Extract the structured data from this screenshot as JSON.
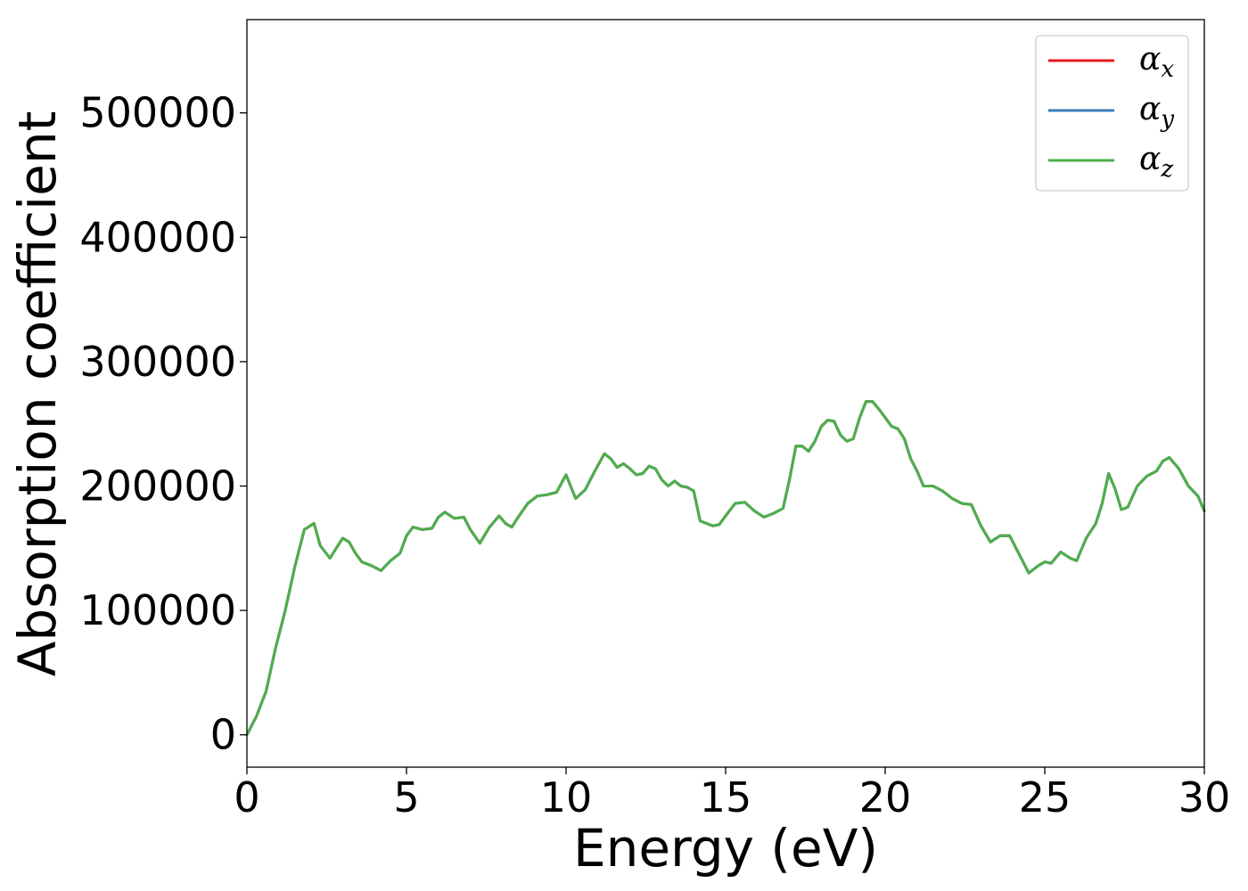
{
  "chart_data": {
    "type": "line",
    "xlabel": "Energy (eV)",
    "ylabel": "Absorption coefficient",
    "xlim": [
      0,
      30
    ],
    "ylim": [
      -26000,
      575000
    ],
    "x_ticks": [
      0,
      5,
      10,
      15,
      20,
      25,
      30
    ],
    "y_ticks": [
      0,
      100000,
      200000,
      300000,
      400000,
      500000
    ],
    "grid": false,
    "legend_position": "top-right",
    "legend": [
      {
        "symbol": "α",
        "subscript": "x",
        "color": "#e41a1c"
      },
      {
        "symbol": "α",
        "subscript": "y",
        "color": "#377eb8"
      },
      {
        "symbol": "α",
        "subscript": "z",
        "color": "#4daf4a"
      }
    ],
    "series": [
      {
        "color": "#e41a1c",
        "x": [
          0,
          0.3,
          0.6,
          0.9,
          1.2,
          1.5,
          1.8,
          2.1,
          2.3,
          2.6,
          2.8,
          3.0,
          3.2,
          3.4,
          3.6,
          3.9,
          4.2,
          4.5,
          4.8,
          5.0,
          5.2,
          5.5,
          5.8,
          6.0,
          6.2,
          6.5,
          6.8,
          7.0,
          7.3,
          7.6,
          7.9,
          8.1,
          8.3,
          8.5,
          8.8,
          9.1,
          9.4,
          9.7,
          10.0,
          10.3,
          10.6,
          10.9,
          11.2,
          11.4,
          11.6,
          11.8,
          12.0,
          12.2,
          12.4,
          12.6,
          12.8,
          13.0,
          13.2,
          13.4,
          13.6,
          13.8,
          14.0,
          14.2,
          14.4,
          14.6,
          14.8,
          15.0,
          15.3,
          15.6,
          15.9,
          16.2,
          16.5,
          16.8,
          17.0,
          17.2,
          17.4,
          17.6,
          17.8,
          18.0,
          18.2,
          18.4,
          18.6,
          18.8,
          19.0,
          19.2,
          19.4,
          19.6,
          19.8,
          20.0,
          20.2,
          20.4,
          20.6,
          20.8,
          21.0,
          21.2,
          21.5,
          21.8,
          22.1,
          22.4,
          22.7,
          23.0,
          23.3,
          23.6,
          23.9,
          24.2,
          24.5,
          24.8,
          25.0,
          25.2,
          25.5,
          25.8,
          26.0,
          26.3,
          26.6,
          26.8,
          27.0,
          27.2,
          27.4,
          27.6,
          27.9,
          28.2,
          28.5,
          28.7,
          28.9,
          29.2,
          29.5,
          29.8,
          30.0
        ],
        "y": [
          0,
          15000,
          35000,
          70000,
          100000,
          135000,
          165000,
          170000,
          152000,
          142000,
          150000,
          158000,
          155000,
          146000,
          139000,
          136000,
          132000,
          140000,
          146000,
          160000,
          167000,
          165000,
          166000,
          175000,
          179000,
          174000,
          175000,
          165000,
          154000,
          167000,
          176000,
          170000,
          167000,
          175000,
          186000,
          192000,
          193000,
          195000,
          209000,
          190000,
          197000,
          212000,
          226000,
          222000,
          215000,
          218000,
          214000,
          209000,
          210000,
          216000,
          214000,
          205000,
          200000,
          204000,
          200000,
          199000,
          196000,
          172000,
          170000,
          168000,
          169000,
          176000,
          186000,
          187000,
          180000,
          175000,
          178000,
          182000,
          205000,
          232000,
          232000,
          228000,
          236000,
          248000,
          253000,
          252000,
          241000,
          236000,
          238000,
          255000,
          268000,
          268000,
          262000,
          255000,
          248000,
          246000,
          238000,
          222000,
          212000,
          200000,
          200000,
          196000,
          190000,
          186000,
          185000,
          168000,
          155000,
          160000,
          160000,
          145000,
          130000,
          136000,
          139000,
          138000,
          147000,
          142000,
          140000,
          158000,
          170000,
          186000,
          210000,
          198000,
          181000,
          183000,
          200000,
          208000,
          212000,
          220000,
          223000,
          214000,
          200000,
          192000,
          180000
        ]
      },
      {
        "color": "#377eb8",
        "x": [
          0,
          0.3,
          0.6,
          0.9,
          1.2,
          1.5,
          1.8,
          2.1,
          2.3,
          2.6,
          2.8,
          3.0,
          3.2,
          3.4,
          3.6,
          3.9,
          4.2,
          4.5,
          4.8,
          5.0,
          5.2,
          5.5,
          5.8,
          6.0,
          6.2,
          6.5,
          6.8,
          7.0,
          7.3,
          7.6,
          7.9,
          8.1,
          8.3,
          8.5,
          8.8,
          9.1,
          9.4,
          9.7,
          10.0,
          10.3,
          10.6,
          10.9,
          11.2,
          11.4,
          11.6,
          11.8,
          12.0,
          12.2,
          12.4,
          12.6,
          12.8,
          13.0,
          13.2,
          13.4,
          13.6,
          13.8,
          14.0,
          14.2,
          14.4,
          14.6,
          14.8,
          15.0,
          15.3,
          15.6,
          15.9,
          16.2,
          16.5,
          16.8,
          17.0,
          17.2,
          17.4,
          17.6,
          17.8,
          18.0,
          18.2,
          18.4,
          18.6,
          18.8,
          19.0,
          19.2,
          19.4,
          19.6,
          19.8,
          20.0,
          20.2,
          20.4,
          20.6,
          20.8,
          21.0,
          21.2,
          21.5,
          21.8,
          22.1,
          22.4,
          22.7,
          23.0,
          23.3,
          23.6,
          23.9,
          24.2,
          24.5,
          24.8,
          25.0,
          25.2,
          25.5,
          25.8,
          26.0,
          26.3,
          26.6,
          26.8,
          27.0,
          27.2,
          27.4,
          27.6,
          27.9,
          28.2,
          28.5,
          28.7,
          28.9,
          29.2,
          29.5,
          29.8,
          30.0
        ],
        "y": [
          0,
          15000,
          35000,
          70000,
          100000,
          135000,
          165000,
          170000,
          152000,
          142000,
          150000,
          158000,
          155000,
          146000,
          139000,
          136000,
          132000,
          140000,
          146000,
          160000,
          167000,
          165000,
          166000,
          175000,
          179000,
          174000,
          175000,
          165000,
          154000,
          167000,
          176000,
          170000,
          167000,
          175000,
          186000,
          192000,
          193000,
          195000,
          209000,
          190000,
          197000,
          212000,
          226000,
          222000,
          215000,
          218000,
          214000,
          209000,
          210000,
          216000,
          214000,
          205000,
          200000,
          204000,
          200000,
          199000,
          196000,
          172000,
          170000,
          168000,
          169000,
          176000,
          186000,
          187000,
          180000,
          175000,
          178000,
          182000,
          205000,
          232000,
          232000,
          228000,
          236000,
          248000,
          253000,
          252000,
          241000,
          236000,
          238000,
          255000,
          268000,
          268000,
          262000,
          255000,
          248000,
          246000,
          238000,
          222000,
          212000,
          200000,
          200000,
          196000,
          190000,
          186000,
          185000,
          168000,
          155000,
          160000,
          160000,
          145000,
          130000,
          136000,
          139000,
          138000,
          147000,
          142000,
          140000,
          158000,
          170000,
          186000,
          210000,
          198000,
          181000,
          183000,
          200000,
          208000,
          212000,
          220000,
          223000,
          214000,
          200000,
          192000,
          180000
        ]
      },
      {
        "color": "#4daf4a",
        "x": [
          0,
          0.3,
          0.6,
          0.9,
          1.2,
          1.5,
          1.8,
          2.1,
          2.3,
          2.6,
          2.8,
          3.0,
          3.2,
          3.4,
          3.6,
          3.9,
          4.2,
          4.5,
          4.8,
          5.0,
          5.2,
          5.5,
          5.8,
          6.0,
          6.2,
          6.5,
          6.8,
          7.0,
          7.3,
          7.6,
          7.9,
          8.1,
          8.3,
          8.5,
          8.8,
          9.1,
          9.4,
          9.7,
          10.0,
          10.3,
          10.6,
          10.9,
          11.2,
          11.4,
          11.6,
          11.8,
          12.0,
          12.2,
          12.4,
          12.6,
          12.8,
          13.0,
          13.2,
          13.4,
          13.6,
          13.8,
          14.0,
          14.2,
          14.4,
          14.6,
          14.8,
          15.0,
          15.3,
          15.6,
          15.9,
          16.2,
          16.5,
          16.8,
          17.0,
          17.2,
          17.4,
          17.6,
          17.8,
          18.0,
          18.2,
          18.4,
          18.6,
          18.8,
          19.0,
          19.2,
          19.4,
          19.6,
          19.8,
          20.0,
          20.2,
          20.4,
          20.6,
          20.8,
          21.0,
          21.2,
          21.5,
          21.8,
          22.1,
          22.4,
          22.7,
          23.0,
          23.3,
          23.6,
          23.9,
          24.2,
          24.5,
          24.8,
          25.0,
          25.2,
          25.5,
          25.8,
          26.0,
          26.3,
          26.6,
          26.8,
          27.0,
          27.2,
          27.4,
          27.6,
          27.9,
          28.2,
          28.5,
          28.7,
          28.9,
          29.2,
          29.5,
          29.8,
          30.0
        ],
        "y": [
          0,
          15000,
          35000,
          70000,
          100000,
          135000,
          165000,
          170000,
          152000,
          142000,
          150000,
          158000,
          155000,
          146000,
          139000,
          136000,
          132000,
          140000,
          146000,
          160000,
          167000,
          165000,
          166000,
          175000,
          179000,
          174000,
          175000,
          165000,
          154000,
          167000,
          176000,
          170000,
          167000,
          175000,
          186000,
          192000,
          193000,
          195000,
          209000,
          190000,
          197000,
          212000,
          226000,
          222000,
          215000,
          218000,
          214000,
          209000,
          210000,
          216000,
          214000,
          205000,
          200000,
          204000,
          200000,
          199000,
          196000,
          172000,
          170000,
          168000,
          169000,
          176000,
          186000,
          187000,
          180000,
          175000,
          178000,
          182000,
          205000,
          232000,
          232000,
          228000,
          236000,
          248000,
          253000,
          252000,
          241000,
          236000,
          238000,
          255000,
          268000,
          268000,
          262000,
          255000,
          248000,
          246000,
          238000,
          222000,
          212000,
          200000,
          200000,
          196000,
          190000,
          186000,
          185000,
          168000,
          155000,
          160000,
          160000,
          145000,
          130000,
          136000,
          139000,
          138000,
          147000,
          142000,
          140000,
          158000,
          170000,
          186000,
          210000,
          198000,
          181000,
          183000,
          200000,
          208000,
          212000,
          220000,
          223000,
          214000,
          200000,
          192000,
          180000
        ]
      }
    ]
  }
}
